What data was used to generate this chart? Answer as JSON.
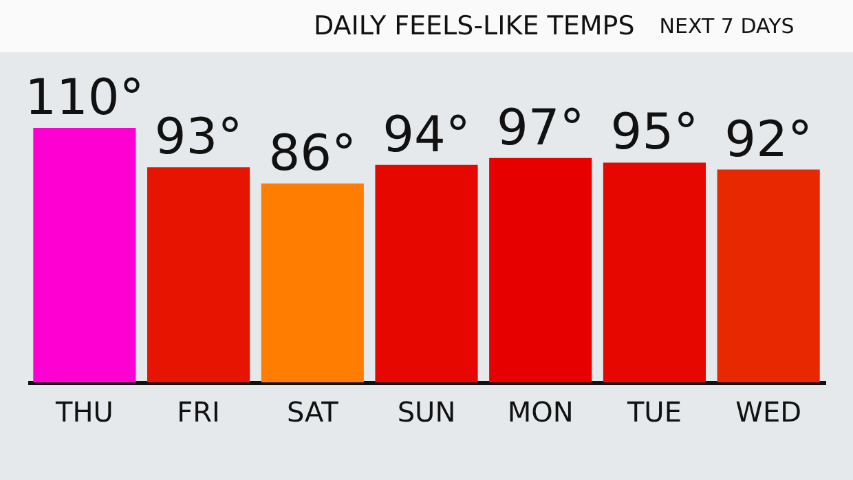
{
  "chart_data": {
    "type": "bar",
    "title": "DAILY FEELS-LIKE TEMPS",
    "subtitle": "NEXT 7 DAYS",
    "categories": [
      "THU",
      "FRI",
      "SAT",
      "SUN",
      "MON",
      "TUE",
      "WED"
    ],
    "values": [
      110,
      93,
      86,
      94,
      97,
      95,
      92
    ],
    "colors": [
      "#ff00d2",
      "#e61400",
      "#ff7d00",
      "#e60800",
      "#e60000",
      "#e60800",
      "#e82800"
    ],
    "value_labels": [
      "110°",
      "93°",
      "86°",
      "94°",
      "97°",
      "95°",
      "92°"
    ],
    "tick_labels": "x"
  }
}
